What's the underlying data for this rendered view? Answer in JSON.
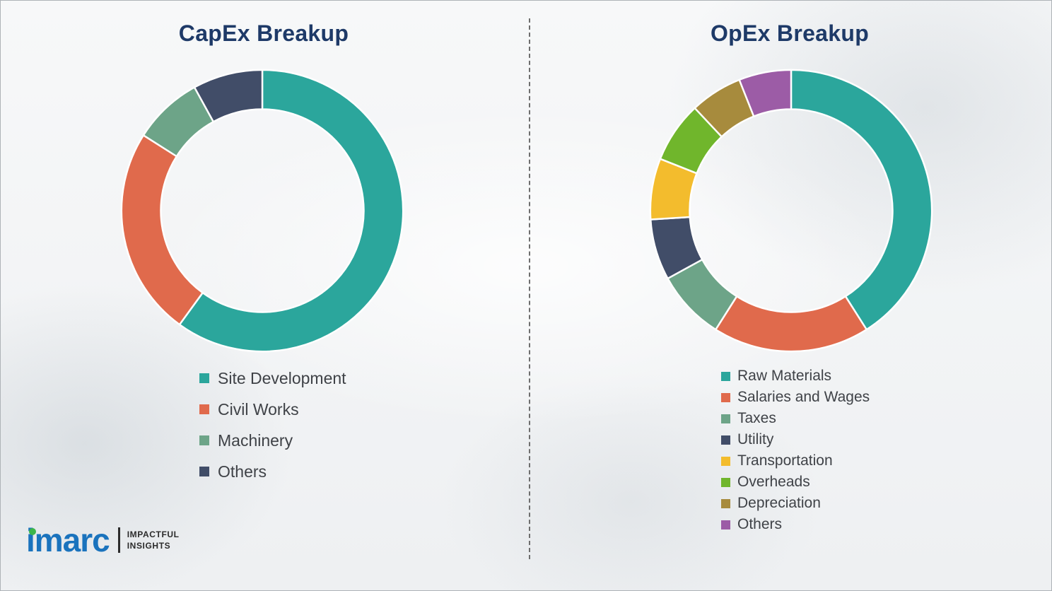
{
  "logo": {
    "brand": "imarc",
    "tagline_line1": "IMPACTFUL",
    "tagline_line2": "INSIGHTS"
  },
  "colors": {
    "title": "#1e3a68",
    "legend_text": "#3f4247",
    "segment_gap_stroke": "#ffffff"
  },
  "chart_data": [
    {
      "type": "pie",
      "donut": true,
      "title": "CapEx Breakup",
      "start_angle_deg": 0,
      "direction": "clockwise",
      "legend_position": "below-left",
      "segments": [
        {
          "label": "Site Development",
          "value": 60,
          "color": "#2ba69c"
        },
        {
          "label": "Civil Works",
          "value": 24,
          "color": "#e06a4c"
        },
        {
          "label": "Machinery",
          "value": 8,
          "color": "#6da488"
        },
        {
          "label": "Others",
          "value": 8,
          "color": "#414d68"
        }
      ]
    },
    {
      "type": "pie",
      "donut": true,
      "title": "OpEx Breakup",
      "start_angle_deg": 0,
      "direction": "clockwise",
      "legend_position": "below-left",
      "segments": [
        {
          "label": "Raw Materials",
          "value": 41,
          "color": "#2ba69c"
        },
        {
          "label": "Salaries and Wages",
          "value": 18,
          "color": "#e06a4c"
        },
        {
          "label": "Taxes",
          "value": 8,
          "color": "#6da488"
        },
        {
          "label": "Utility",
          "value": 7,
          "color": "#414d68"
        },
        {
          "label": "Transportation",
          "value": 7,
          "color": "#f3bc2d"
        },
        {
          "label": "Overheads",
          "value": 7,
          "color": "#70b62c"
        },
        {
          "label": "Depreciation",
          "value": 6,
          "color": "#a78b3d"
        },
        {
          "label": "Others",
          "value": 6,
          "color": "#9c5ca6"
        }
      ]
    }
  ]
}
